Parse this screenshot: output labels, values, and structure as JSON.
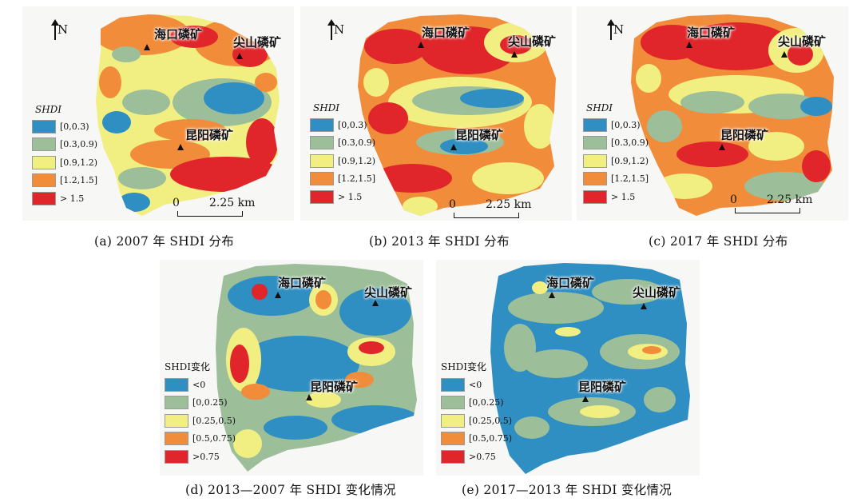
{
  "panels": [
    {
      "id": "a",
      "caption": "(a) 2007 年 SHDI 分布",
      "legend_title": "SHDI",
      "legend_type": "shdi",
      "north": "N",
      "scale_zero": "0",
      "scale_dist": "2.25 km",
      "sites": [
        "海口磷矿",
        "尖山磷矿",
        "昆阳磷矿"
      ]
    },
    {
      "id": "b",
      "caption": "(b) 2013 年 SHDI 分布",
      "legend_title": "SHDI",
      "legend_type": "shdi",
      "north": "N",
      "scale_zero": "0",
      "scale_dist": "2.25 km",
      "sites": [
        "海口磷矿",
        "尖山磷矿",
        "昆阳磷矿"
      ]
    },
    {
      "id": "c",
      "caption": "(c) 2017 年 SHDI 分布",
      "legend_title": "SHDI",
      "legend_type": "shdi",
      "north": "N",
      "scale_zero": "0",
      "scale_dist": "2.25 km",
      "sites": [
        "海口磷矿",
        "尖山磷矿",
        "昆阳磷矿"
      ]
    },
    {
      "id": "d",
      "caption": "(d) 2013—2007 年 SHDI 变化情况",
      "legend_title": "SHDI变化",
      "legend_type": "change",
      "sites": [
        "海口磷矿",
        "尖山磷矿",
        "昆阳磷矿"
      ]
    },
    {
      "id": "e",
      "caption": "(e) 2017—2013 年 SHDI 变化情况",
      "legend_title": "SHDI变化",
      "legend_type": "change",
      "sites": [
        "海口磷矿",
        "尖山磷矿",
        "昆阳磷矿"
      ]
    }
  ],
  "legend_shdi": [
    "[0,0.3)",
    "[0.3,0.9)",
    "[0.9,1.2)",
    "[1.2,1.5]",
    "> 1.5"
  ],
  "legend_change": [
    "<0",
    "[0,0.25)",
    "[0.25,0.5)",
    "[0.5,0.75)",
    ">0.75"
  ],
  "class_colors": [
    "#2f8ec2",
    "#9cbf9a",
    "#f2ef82",
    "#f08c3a",
    "#e0262a"
  ]
}
